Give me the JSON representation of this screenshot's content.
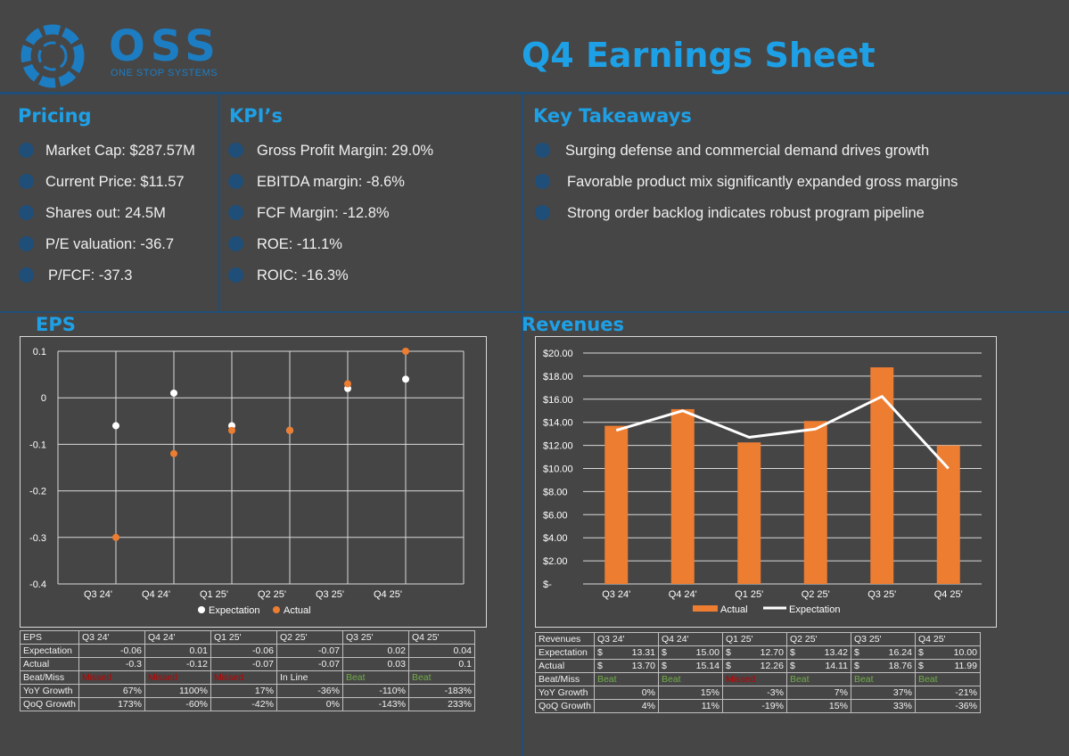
{
  "header": {
    "logo_name": "OSS",
    "logo_subtitle": "ONE STOP SYSTEMS",
    "title": "Q4 Earnings Sheet"
  },
  "pricing": {
    "title": "Pricing",
    "items": [
      "Market Cap: $287.57M",
      "Current Price: $11.57",
      "Shares out: 24.5M",
      "P/E valuation: -36.7",
      "P/FCF: -37.3"
    ]
  },
  "kpis": {
    "title": "KPI’s",
    "items": [
      "Gross Profit Margin: 29.0%",
      "EBITDA margin: -8.6%",
      "FCF Margin: -12.8%",
      "ROE: -11.1%",
      "ROIC: -16.3%"
    ]
  },
  "takeaways": {
    "title": "Key Takeaways",
    "items": [
      "Surging defense and commercial demand drives growth",
      "Favorable product mix significantly expanded gross margins",
      "Strong order backlog indicates robust program pipeline"
    ]
  },
  "colors": {
    "accent": "#1ea0e6",
    "logo": "#1d7dc3",
    "navy": "#1f4e79",
    "orange": "#ed7d31",
    "miss": "#c00000",
    "beat": "#70ad47",
    "background": "#464646"
  },
  "eps_table": {
    "headers": [
      "EPS",
      "Q3 24'",
      "Q4 24'",
      "Q1 25'",
      "Q2 25'",
      "Q3 25'",
      "Q4 25'"
    ],
    "rows": [
      {
        "label": "Expectation",
        "values": [
          "-0.06",
          "0.01",
          "-0.06",
          "-0.07",
          "0.02",
          "0.04"
        ]
      },
      {
        "label": "Actual",
        "values": [
          "-0.3",
          "-0.12",
          "-0.07",
          "-0.07",
          "0.03",
          "0.1"
        ]
      },
      {
        "label": "Beat/Miss",
        "values": [
          "Missed",
          "Missed",
          "Missed",
          "In Line",
          "Beat",
          "Beat"
        ]
      },
      {
        "label": "YoY Growth",
        "values": [
          "67%",
          "1100%",
          "17%",
          "-36%",
          "-110%",
          "-183%"
        ]
      },
      {
        "label": "QoQ Growth",
        "values": [
          "173%",
          "-60%",
          "-42%",
          "0%",
          "-143%",
          "233%"
        ]
      }
    ]
  },
  "rev_table": {
    "headers": [
      "Revenues",
      "Q3 24'",
      "Q4 24'",
      "Q1 25'",
      "Q2 25'",
      "Q3 25'",
      "Q4 25'"
    ],
    "rows": [
      {
        "label": "Expectation",
        "values": [
          "13.31",
          "15.00",
          "12.70",
          "13.42",
          "16.24",
          "10.00"
        ]
      },
      {
        "label": "Actual",
        "values": [
          "13.70",
          "15.14",
          "12.26",
          "14.11",
          "18.76",
          "11.99"
        ]
      },
      {
        "label": "Beat/Miss",
        "values": [
          "Beat",
          "Beat",
          "Missed",
          "Beat",
          "Beat",
          "Beat"
        ]
      },
      {
        "label": "YoY Growth",
        "values": [
          "0%",
          "15%",
          "-3%",
          "7%",
          "37%",
          "-21%"
        ]
      },
      {
        "label": "QoQ Growth",
        "values": [
          "4%",
          "11%",
          "-19%",
          "15%",
          "33%",
          "-36%"
        ]
      }
    ]
  },
  "chart_data": [
    {
      "type": "scatter",
      "title": "EPS",
      "categories": [
        "Q3 24'",
        "Q4 24'",
        "Q1 25'",
        "Q2 25'",
        "Q3 25'",
        "Q4 25'"
      ],
      "series": [
        {
          "name": "Expectation",
          "values": [
            -0.06,
            0.01,
            -0.06,
            -0.07,
            0.02,
            0.04
          ],
          "color": "#ffffff"
        },
        {
          "name": "Actual",
          "values": [
            -0.3,
            -0.12,
            -0.07,
            -0.07,
            0.03,
            0.1
          ],
          "color": "#ed7d31"
        }
      ],
      "ylim": [
        -0.4,
        0.1
      ],
      "yticks": [
        0.1,
        0,
        -0.1,
        -0.2,
        -0.3,
        -0.4
      ],
      "ytick_labels": [
        "0.1",
        "0",
        "-0.1",
        "-0.2",
        "-0.3",
        "-0.4"
      ],
      "grid": true,
      "legend": "bottom"
    },
    {
      "type": "bar",
      "title": "Revenues",
      "categories": [
        "Q3 24'",
        "Q4 24'",
        "Q1 25'",
        "Q2 25'",
        "Q3 25'",
        "Q4 25'"
      ],
      "series": [
        {
          "name": "Actual",
          "type": "bar",
          "values": [
            13.7,
            15.14,
            12.26,
            14.11,
            18.76,
            11.99
          ],
          "color": "#ed7d31"
        },
        {
          "name": "Expectation",
          "type": "line",
          "values": [
            13.31,
            15.0,
            12.7,
            13.42,
            16.24,
            10.0
          ],
          "color": "#ffffff"
        }
      ],
      "ylim": [
        0,
        20
      ],
      "yticks": [
        20,
        18,
        16,
        14,
        12,
        10,
        8,
        6,
        4,
        2,
        0
      ],
      "ytick_labels": [
        "$20.00",
        "$18.00",
        "$16.00",
        "$14.00",
        "$12.00",
        "$10.00",
        "$8.00",
        "$6.00",
        "$4.00",
        "$2.00",
        "$-"
      ],
      "grid": true,
      "legend": "bottom"
    }
  ]
}
